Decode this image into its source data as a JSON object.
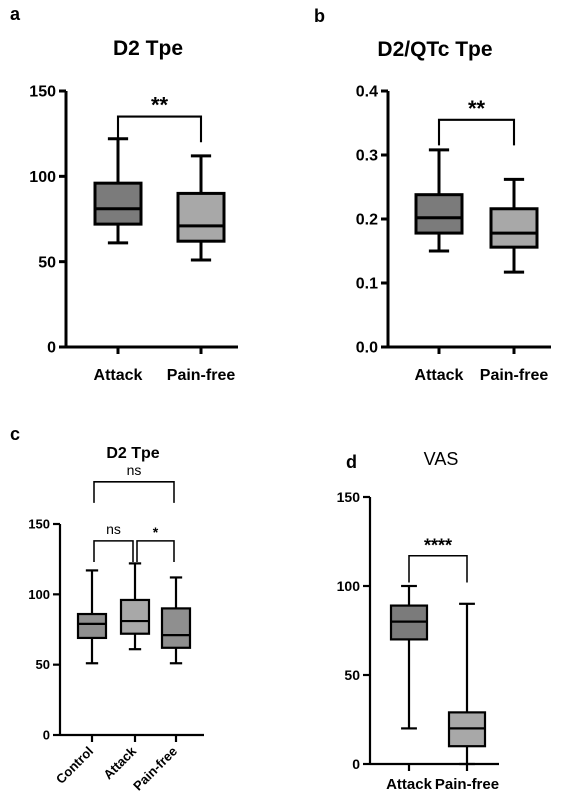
{
  "figure": {
    "panels": [
      "a",
      "b",
      "c",
      "d"
    ]
  },
  "colors": {
    "attack_box": "#7b7b7b",
    "painfree_box": "#a8a8a8",
    "control_box": "#8f8f8f",
    "stroke": "#000000"
  },
  "chart_data": [
    {
      "panel": "a",
      "type": "boxplot",
      "title": "D2 Tpe",
      "ylim": [
        0,
        150
      ],
      "yticks": [
        "0",
        "50",
        "100",
        "150"
      ],
      "categories": [
        "Attack",
        "Pain-free"
      ],
      "boxes": [
        {
          "name": "Attack",
          "min": 61,
          "q1": 72,
          "median": 81,
          "q3": 96,
          "max": 122,
          "color": "#7b7b7b"
        },
        {
          "name": "Pain-free",
          "min": 51,
          "q1": 62,
          "median": 71,
          "q3": 90,
          "max": 112,
          "color": "#a8a8a8"
        }
      ],
      "brackets": [
        {
          "from": 0,
          "to": 1,
          "label": "**",
          "y": 135
        }
      ]
    },
    {
      "panel": "b",
      "type": "boxplot",
      "title": "D2/QTc Tpe",
      "ylim": [
        0,
        0.4
      ],
      "yticks": [
        "0.0",
        "0.1",
        "0.2",
        "0.3",
        "0.4"
      ],
      "categories": [
        "Attack",
        "Pain-free"
      ],
      "boxes": [
        {
          "name": "Attack",
          "min": 0.15,
          "q1": 0.178,
          "median": 0.202,
          "q3": 0.238,
          "max": 0.308,
          "color": "#7b7b7b"
        },
        {
          "name": "Pain-free",
          "min": 0.117,
          "q1": 0.156,
          "median": 0.178,
          "q3": 0.216,
          "max": 0.262,
          "color": "#a8a8a8"
        }
      ],
      "brackets": [
        {
          "from": 0,
          "to": 1,
          "label": "**",
          "y": 0.355
        }
      ]
    },
    {
      "panel": "c",
      "type": "boxplot",
      "title": "D2 Tpe",
      "ylim": [
        0,
        150
      ],
      "yticks": [
        "0",
        "50",
        "100",
        "150"
      ],
      "categories": [
        "Control",
        "Attack",
        "Pain-free"
      ],
      "boxes": [
        {
          "name": "Control",
          "min": 51,
          "q1": 69,
          "median": 79,
          "q3": 86,
          "max": 117,
          "color": "#8f8f8f"
        },
        {
          "name": "Attack",
          "min": 61,
          "q1": 72,
          "median": 81,
          "q3": 96,
          "max": 122,
          "color": "#a8a8a8"
        },
        {
          "name": "Pain-free",
          "min": 51,
          "q1": 62,
          "median": 71,
          "q3": 90,
          "max": 112,
          "color": "#8f8f8f"
        }
      ],
      "brackets": [
        {
          "from": 0,
          "to": 1,
          "label": "ns",
          "y": 138
        },
        {
          "from": 1,
          "to": 2,
          "label": "*",
          "y": 138
        },
        {
          "from": 0,
          "to": 2,
          "label": "ns",
          "y": 180
        }
      ]
    },
    {
      "panel": "d",
      "type": "boxplot",
      "title": "VAS",
      "ylim": [
        0,
        150
      ],
      "yticks": [
        "0",
        "50",
        "100",
        "150"
      ],
      "categories": [
        "Attack",
        "Pain-free"
      ],
      "boxes": [
        {
          "name": "Attack",
          "min": 20,
          "q1": 70,
          "median": 80,
          "q3": 89,
          "max": 100,
          "color": "#7b7b7b"
        },
        {
          "name": "Pain-free",
          "min": 0,
          "q1": 10,
          "median": 20,
          "q3": 29,
          "max": 90,
          "color": "#a8a8a8"
        }
      ],
      "brackets": [
        {
          "from": 0,
          "to": 1,
          "label": "****",
          "y": 117
        }
      ]
    }
  ]
}
